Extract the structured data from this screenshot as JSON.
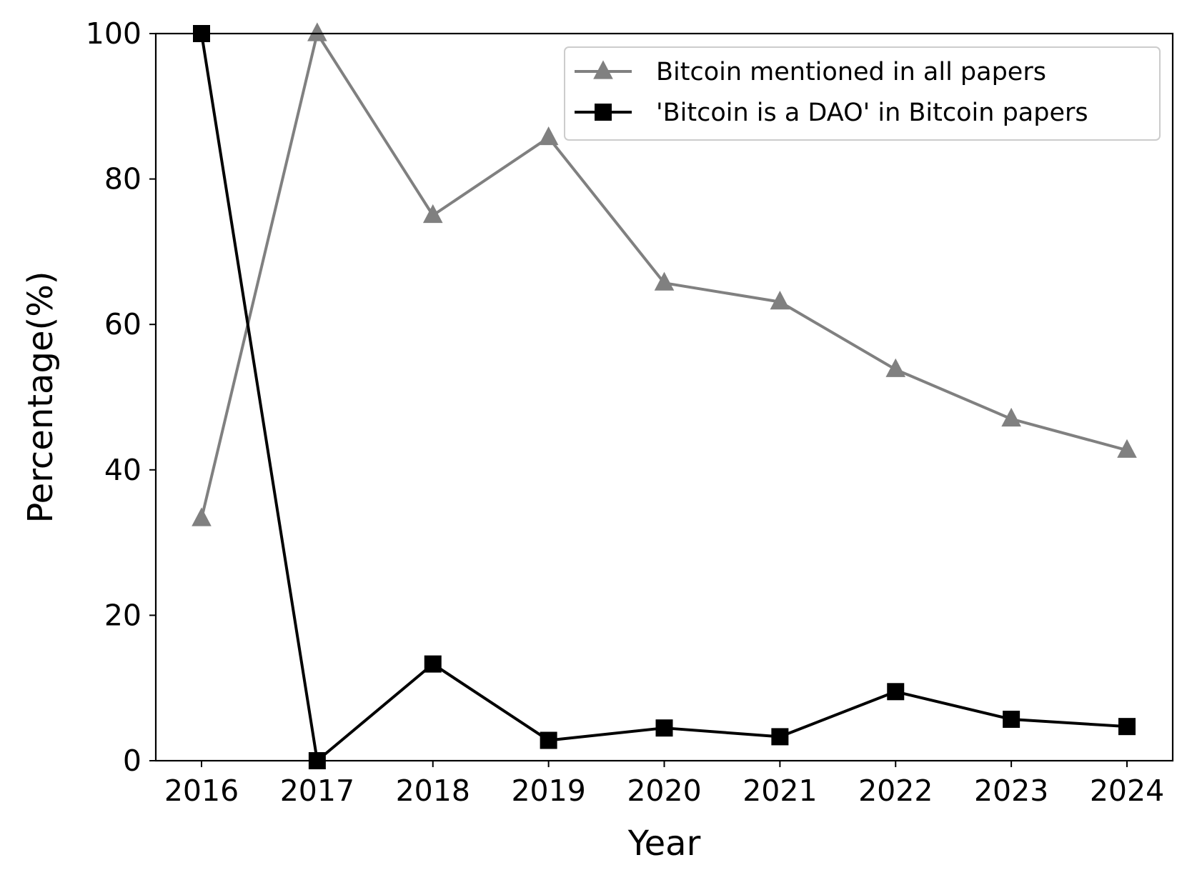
{
  "chart_data": {
    "type": "line",
    "categories": [
      "2016",
      "2017",
      "2018",
      "2019",
      "2020",
      "2021",
      "2022",
      "2023",
      "2024"
    ],
    "series": [
      {
        "name": "Bitcoin mentioned in all papers",
        "color": "#808080",
        "marker": "triangle-up",
        "values": [
          33.3,
          100,
          75.0,
          85.7,
          65.7,
          63.1,
          53.8,
          47.0,
          42.7
        ]
      },
      {
        "name": "'Bitcoin is a DAO' in Bitcoin papers",
        "color": "#000000",
        "marker": "square",
        "values": [
          100,
          0,
          13.3,
          2.8,
          4.5,
          3.3,
          9.5,
          5.7,
          4.7
        ]
      }
    ],
    "xlabel": "Year",
    "ylabel": "Percentage(%)",
    "ylim": [
      0,
      100
    ],
    "yticks": [
      "0",
      "20",
      "40",
      "60",
      "80",
      "100"
    ],
    "grid": false,
    "legend_position": "top-right"
  }
}
